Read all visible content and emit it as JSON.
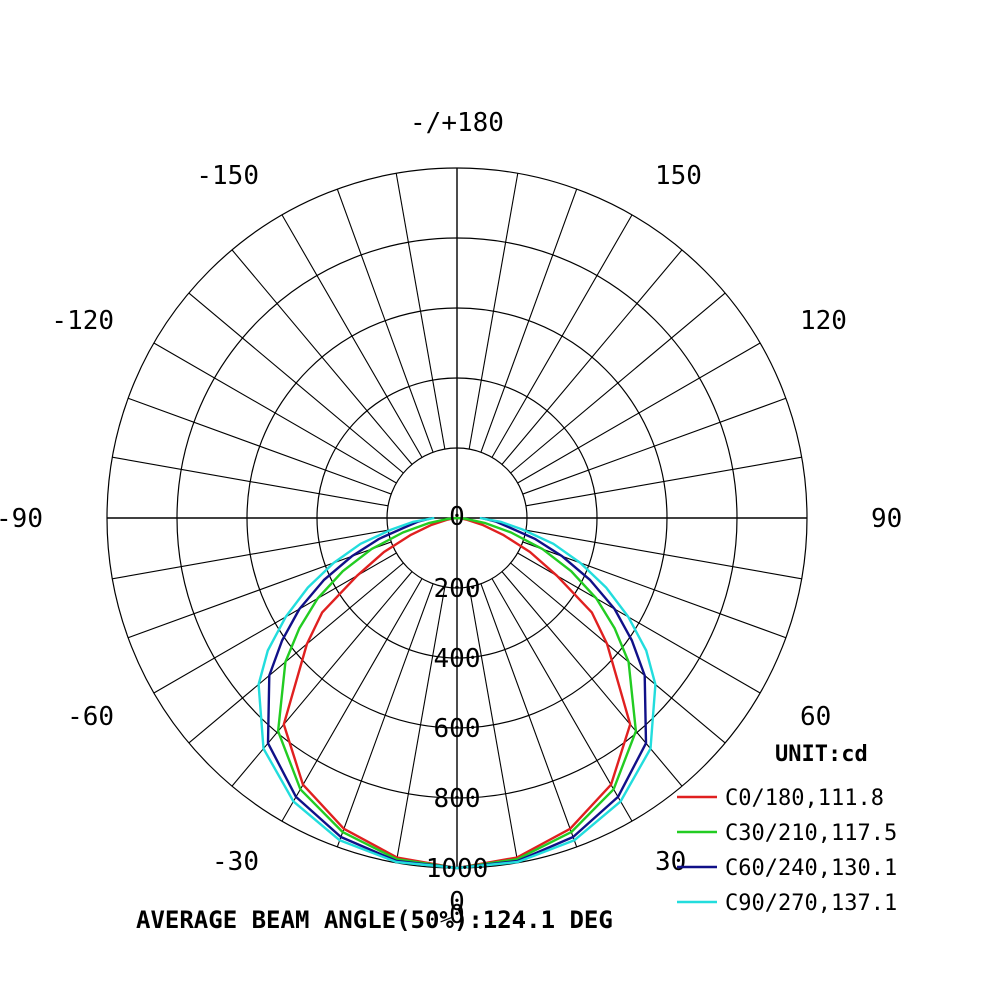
{
  "chart_data": {
    "type": "polar",
    "unit_label": "UNIT:cd",
    "footer": "AVERAGE BEAM ANGLE(50%):124.1 DEG",
    "rlim": [
      0,
      1000
    ],
    "radial_ticks": [
      {
        "value": 0,
        "label": "0"
      },
      {
        "value": 200,
        "label": "200"
      },
      {
        "value": 400,
        "label": "400"
      },
      {
        "value": 600,
        "label": "600"
      },
      {
        "value": 800,
        "label": "800"
      },
      {
        "value": 1000,
        "label": "1000"
      }
    ],
    "angle_labels": [
      {
        "angle": 0,
        "label": "0"
      },
      {
        "angle": 30,
        "label": "30"
      },
      {
        "angle": -30,
        "label": "-30"
      },
      {
        "angle": 60,
        "label": "60"
      },
      {
        "angle": -60,
        "label": "-60"
      },
      {
        "angle": 90,
        "label": "90"
      },
      {
        "angle": -90,
        "label": "-90"
      },
      {
        "angle": 120,
        "label": "120"
      },
      {
        "angle": -120,
        "label": "-120"
      },
      {
        "angle": 150,
        "label": "150"
      },
      {
        "angle": -150,
        "label": "-150"
      },
      {
        "angle": 180,
        "label": "-/+180"
      }
    ],
    "angle_grid_step_deg": 10,
    "grid": true,
    "legend_position": "bottom-right",
    "series": [
      {
        "name": "C0/180,111.8",
        "color": "#e02020",
        "angles": [
          0,
          10,
          20,
          30,
          40,
          50,
          55,
          60,
          65,
          70,
          75,
          80,
          85,
          90
        ],
        "values": [
          1000,
          985,
          945,
          880,
          770,
          560,
          470,
          330,
          230,
          140,
          75,
          30,
          10,
          0
        ]
      },
      {
        "name": "C30/210,117.5",
        "color": "#22cc22",
        "angles": [
          0,
          10,
          20,
          30,
          40,
          50,
          55,
          60,
          65,
          70,
          75,
          80,
          85,
          90
        ],
        "values": [
          1000,
          990,
          955,
          895,
          795,
          640,
          550,
          460,
          360,
          260,
          160,
          80,
          25,
          0
        ]
      },
      {
        "name": "C60/240,130.1",
        "color": "#101088",
        "angles": [
          0,
          10,
          20,
          30,
          40,
          50,
          55,
          60,
          65,
          70,
          75,
          80,
          85,
          90
        ],
        "values": [
          1000,
          995,
          970,
          920,
          840,
          700,
          610,
          520,
          420,
          320,
          230,
          150,
          110,
          70
        ]
      },
      {
        "name": "C90/270,137.1",
        "color": "#22dddd",
        "angles": [
          0,
          10,
          20,
          30,
          40,
          50,
          55,
          60,
          65,
          70,
          75,
          80,
          85,
          90
        ],
        "values": [
          1000,
          998,
          980,
          935,
          860,
          740,
          660,
          565,
          470,
          375,
          285,
          190,
          125,
          65
        ]
      }
    ]
  }
}
